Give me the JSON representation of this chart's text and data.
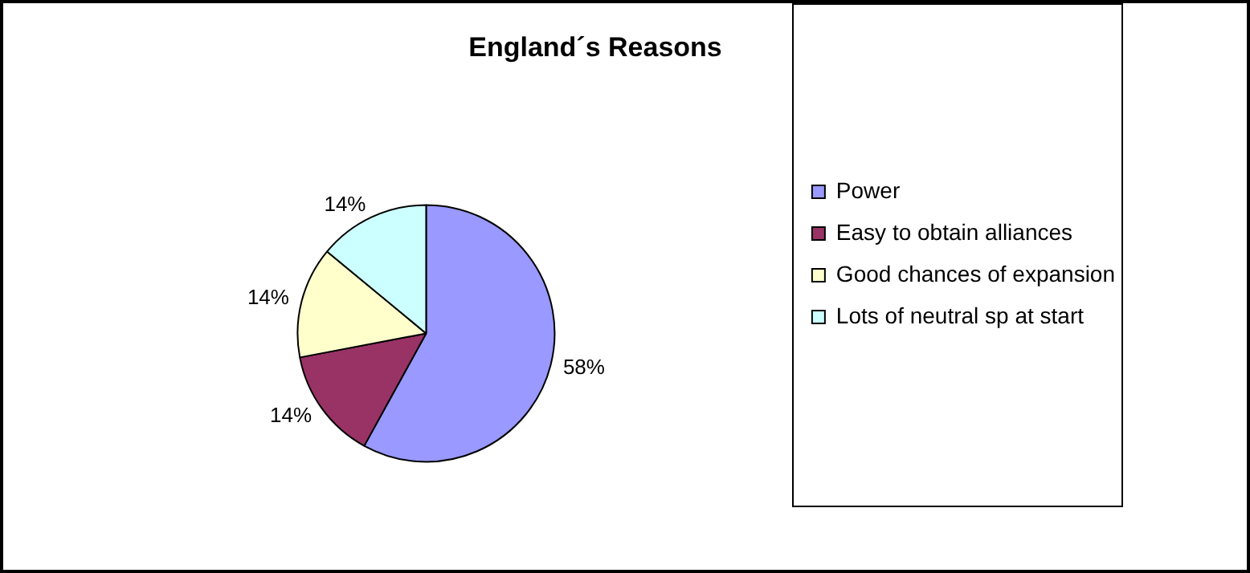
{
  "chart_data": {
    "type": "pie",
    "title": "England´s Reasons",
    "categories": [
      "Power",
      "Easy to obtain alliances",
      "Good chances of expansion",
      "Lots of neutral sp at start"
    ],
    "values": [
      58,
      14,
      14,
      14
    ],
    "value_labels": [
      "58%",
      "14%",
      "14%",
      "14%"
    ],
    "colors": [
      "#9999ff",
      "#993366",
      "#ffffcc",
      "#ccffff"
    ],
    "legend": "right"
  }
}
